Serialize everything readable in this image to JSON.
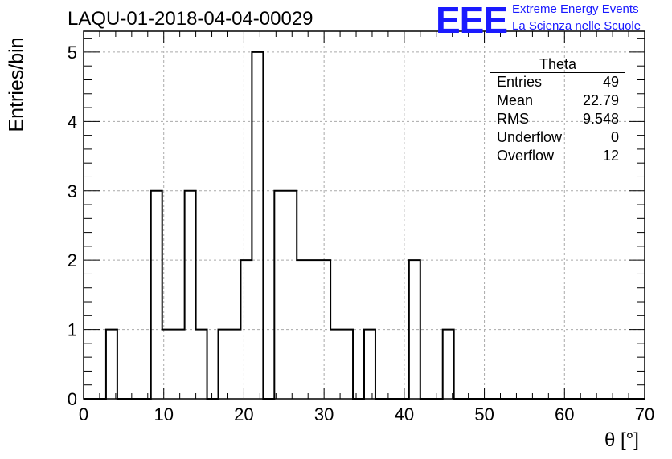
{
  "header": {
    "title": "LAQU-01-2018-04-04-00029",
    "logo_mark": "EEE",
    "logo_line1": "Extreme Energy Events",
    "logo_line2": "La Scienza nelle Scuole",
    "accent_color": "#1a1aff"
  },
  "stats_box": {
    "title": "Theta",
    "rows": [
      {
        "label": "Entries",
        "value": "49"
      },
      {
        "label": "Mean",
        "value": "22.79"
      },
      {
        "label": "RMS",
        "value": "9.548"
      },
      {
        "label": "Underflow",
        "value": "0"
      },
      {
        "label": "Overflow",
        "value": "12"
      }
    ]
  },
  "chart_data": {
    "type": "bar",
    "style": "step-histogram",
    "title": "LAQU-01-2018-04-04-00029",
    "xlabel": "θ [°]",
    "ylabel": "Entries/bin",
    "xlim": [
      0,
      70
    ],
    "ylim": [
      0,
      5.3
    ],
    "bin_width": 1.4,
    "bin_low_edges": [
      0,
      1.4,
      2.8,
      4.2,
      5.6,
      7,
      8.4,
      9.8,
      11.2,
      12.6,
      14,
      15.4,
      16.8,
      18.2,
      19.6,
      21,
      22.4,
      23.8,
      25.2,
      26.6,
      28,
      29.4,
      30.8,
      32.2,
      33.6,
      35,
      36.4,
      37.8,
      39.2,
      40.6,
      42,
      43.4,
      44.8,
      46.2,
      47.6,
      49,
      50.4,
      51.8,
      53.2,
      54.6,
      56,
      57.4,
      58.8,
      60.2,
      61.6,
      63,
      64.4,
      65.8,
      67.2,
      68.6
    ],
    "values": [
      0,
      0,
      1,
      0,
      0,
      0,
      3,
      1,
      1,
      3,
      1,
      0,
      1,
      1,
      2,
      5,
      0,
      3,
      3,
      2,
      2,
      2,
      1,
      1,
      0,
      1,
      0,
      0,
      0,
      2,
      0,
      0,
      1,
      0,
      0,
      0,
      0,
      0,
      0,
      0,
      0,
      0,
      0,
      0,
      0,
      0,
      0,
      0,
      0,
      0
    ],
    "x_ticks": [
      0,
      10,
      20,
      30,
      40,
      50,
      60,
      70
    ],
    "y_ticks": [
      0,
      1,
      2,
      3,
      4,
      5
    ],
    "grid": true,
    "legend": "top-right"
  }
}
